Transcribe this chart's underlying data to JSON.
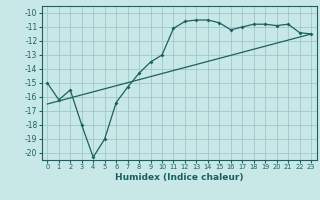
{
  "xlabel": "Humidex (Indice chaleur)",
  "bg_color": "#c8e8e8",
  "grid_color": "#a0c8c8",
  "line_color": "#1a6060",
  "xlim": [
    -0.5,
    23.5
  ],
  "ylim": [
    -20.5,
    -9.5
  ],
  "xticks": [
    0,
    1,
    2,
    3,
    4,
    5,
    6,
    7,
    8,
    9,
    10,
    11,
    12,
    13,
    14,
    15,
    16,
    17,
    18,
    19,
    20,
    21,
    22,
    23
  ],
  "yticks": [
    -10,
    -11,
    -12,
    -13,
    -14,
    -15,
    -16,
    -17,
    -18,
    -19,
    -20
  ],
  "line1_x": [
    0,
    1,
    2,
    3,
    4,
    5,
    6,
    7,
    8,
    9,
    10,
    11,
    12,
    13,
    14,
    15,
    16,
    17,
    18,
    19,
    20,
    21,
    22,
    23
  ],
  "line1_y": [
    -15.0,
    -16.2,
    -15.5,
    -18.0,
    -20.3,
    -19.0,
    -16.4,
    -15.3,
    -14.3,
    -13.5,
    -13.0,
    -11.1,
    -10.6,
    -10.5,
    -10.5,
    -10.7,
    -11.2,
    -11.0,
    -10.8,
    -10.8,
    -10.9,
    -10.8,
    -11.4,
    -11.5
  ],
  "line2_x": [
    0,
    23
  ],
  "line2_y": [
    -16.5,
    -11.5
  ]
}
